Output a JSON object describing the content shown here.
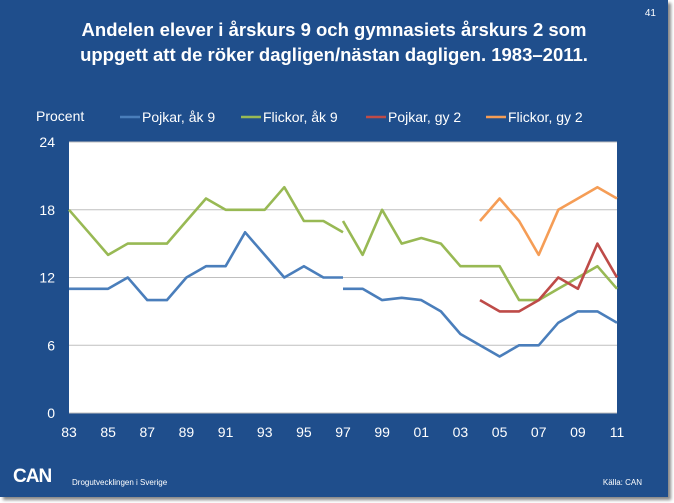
{
  "slide": {
    "number": "41",
    "title_lines": [
      "Andelen elever i årskurs 9 och gymnasiets årskurs 2 som",
      "uppgett att de röker dagligen/nästan dagligen. 1983–2011."
    ],
    "logo": "CAN",
    "organization": "Drogutvecklingen i Sverige",
    "source": "Källa: CAN"
  },
  "colors": {
    "background": "#1f4e8c",
    "plot_area": "#ffffff",
    "gridline": "#bfbfbf",
    "pojkar_ak9": "#4a7ebb",
    "flickor_ak9": "#98b954",
    "pojkar_gy2": "#be4b48",
    "flickor_gy2": "#f59d56"
  },
  "chart_data": {
    "type": "line",
    "title": "Andelen elever i årskurs 9 och gymnasiets årskurs 2 som uppgett att de röker dagligen/nästan dagligen. 1983–2011.",
    "ylabel": "Procent",
    "xlabel": "",
    "ylim": [
      0,
      24
    ],
    "yticks": [
      0,
      6,
      12,
      18,
      24
    ],
    "xlim": [
      1983,
      2011
    ],
    "xticks": [
      1983,
      1985,
      1987,
      1989,
      1991,
      1993,
      1995,
      1997,
      1999,
      2001,
      2003,
      2005,
      2007,
      2009,
      2011
    ],
    "xtick_labels": [
      "83",
      "85",
      "87",
      "89",
      "91",
      "93",
      "95",
      "97",
      "99",
      "01",
      "03",
      "05",
      "07",
      "09",
      "11"
    ],
    "grid": "horizontal",
    "legend_position": "top",
    "series": [
      {
        "name": "Pojkar, åk 9",
        "color_key": "pojkar_ak9",
        "segments": [
          [
            [
              1983,
              11
            ],
            [
              1984,
              11
            ],
            [
              1985,
              11
            ],
            [
              1986,
              12
            ],
            [
              1987,
              10
            ],
            [
              1988,
              10
            ],
            [
              1989,
              12
            ],
            [
              1990,
              13
            ],
            [
              1991,
              13
            ],
            [
              1992,
              16
            ],
            [
              1993,
              14
            ],
            [
              1994,
              12
            ],
            [
              1995,
              13
            ],
            [
              1996,
              12
            ],
            [
              1997,
              12
            ]
          ],
          [
            [
              1997,
              11
            ],
            [
              1998,
              11
            ],
            [
              1999,
              10
            ],
            [
              2000,
              10.2
            ],
            [
              2001,
              10
            ],
            [
              2002,
              9
            ],
            [
              2003,
              7
            ],
            [
              2004,
              6
            ],
            [
              2005,
              5
            ],
            [
              2006,
              6
            ],
            [
              2007,
              6
            ],
            [
              2008,
              8
            ],
            [
              2009,
              9
            ],
            [
              2010,
              9
            ],
            [
              2011,
              8
            ]
          ]
        ]
      },
      {
        "name": "Flickor, åk 9",
        "color_key": "flickor_ak9",
        "segments": [
          [
            [
              1983,
              18
            ],
            [
              1984,
              16
            ],
            [
              1985,
              14
            ],
            [
              1986,
              15
            ],
            [
              1987,
              15
            ],
            [
              1988,
              15
            ],
            [
              1989,
              17
            ],
            [
              1990,
              19
            ],
            [
              1991,
              18
            ],
            [
              1992,
              18
            ],
            [
              1993,
              18
            ],
            [
              1994,
              20
            ],
            [
              1995,
              17
            ],
            [
              1996,
              17
            ],
            [
              1997,
              16
            ]
          ],
          [
            [
              1997,
              17
            ],
            [
              1998,
              14
            ],
            [
              1999,
              18
            ],
            [
              2000,
              15
            ],
            [
              2001,
              15.5
            ],
            [
              2002,
              15
            ],
            [
              2003,
              13
            ],
            [
              2004,
              13
            ],
            [
              2005,
              13
            ],
            [
              2006,
              10
            ],
            [
              2007,
              10
            ],
            [
              2008,
              11
            ],
            [
              2009,
              12
            ],
            [
              2010,
              13
            ],
            [
              2011,
              11
            ]
          ]
        ]
      },
      {
        "name": "Pojkar, gy 2",
        "color_key": "pojkar_gy2",
        "segments": [
          [
            [
              2004,
              10
            ],
            [
              2005,
              9
            ],
            [
              2006,
              9
            ],
            [
              2007,
              10
            ],
            [
              2008,
              12
            ],
            [
              2009,
              11
            ],
            [
              2010,
              15
            ],
            [
              2011,
              12
            ]
          ]
        ]
      },
      {
        "name": "Flickor, gy 2",
        "color_key": "flickor_gy2",
        "segments": [
          [
            [
              2004,
              17
            ],
            [
              2005,
              19
            ],
            [
              2006,
              17
            ],
            [
              2007,
              14
            ],
            [
              2008,
              18
            ],
            [
              2009,
              19
            ],
            [
              2010,
              20
            ],
            [
              2011,
              19
            ]
          ]
        ]
      }
    ]
  }
}
